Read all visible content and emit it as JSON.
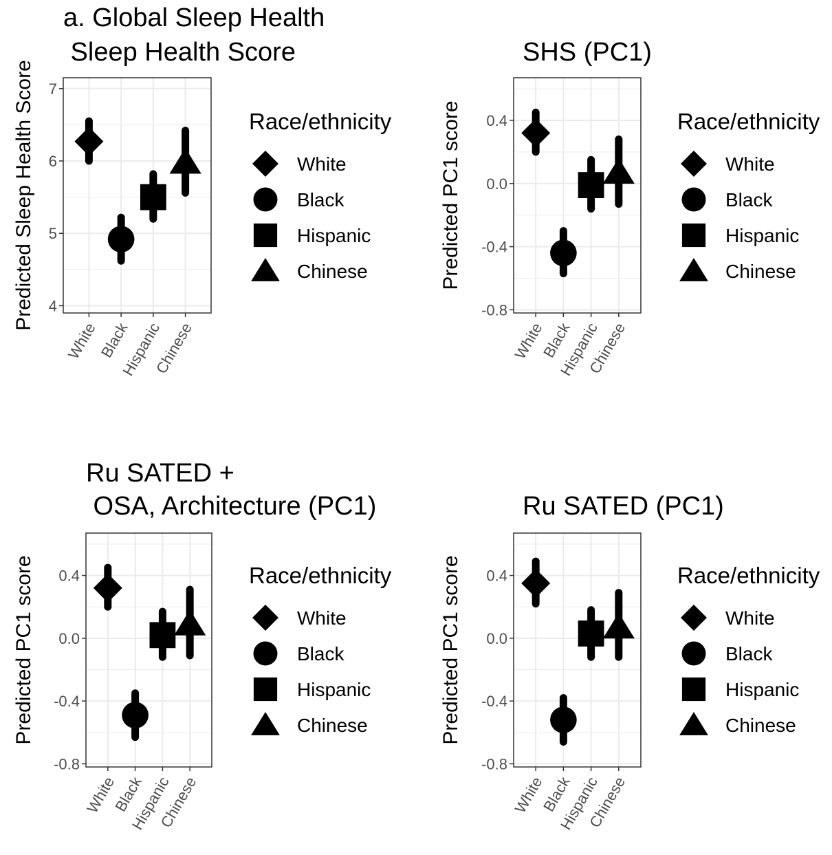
{
  "chart_data": [
    {
      "type": "scatter",
      "title_lines": [
        "a. Global Sleep Health",
        " Sleep Health Score"
      ],
      "ylabel": "Predicted Sleep Health Score",
      "categories": [
        "White",
        "Black",
        "Hispanic",
        "Chinese"
      ],
      "ylim": [
        3.9,
        7.15
      ],
      "yticks": [
        4,
        5,
        6,
        7
      ],
      "ytick_labels": [
        "4",
        "5",
        "6",
        "7"
      ],
      "estimate": [
        6.27,
        4.92,
        5.5,
        5.98
      ],
      "lower": [
        6.0,
        4.62,
        5.2,
        5.56
      ],
      "upper": [
        6.55,
        5.22,
        5.82,
        6.42
      ],
      "grid": true,
      "legend": {
        "title": "Race/ethnicity",
        "position": "right",
        "items": [
          "White",
          "Black",
          "Hispanic",
          "Chinese"
        ]
      }
    },
    {
      "type": "scatter",
      "title_lines": [
        "SHS (PC1)"
      ],
      "ylabel": "Predicted PC1 score",
      "categories": [
        "White",
        "Black",
        "Hispanic",
        "Chinese"
      ],
      "ylim": [
        -0.82,
        0.67
      ],
      "yticks": [
        -0.8,
        -0.4,
        0.0,
        0.4
      ],
      "ytick_labels": [
        "-0.8",
        "-0.4",
        "0.0",
        "0.4"
      ],
      "estimate": [
        0.32,
        -0.44,
        -0.01,
        0.07
      ],
      "lower": [
        0.2,
        -0.57,
        -0.16,
        -0.13
      ],
      "upper": [
        0.45,
        -0.3,
        0.15,
        0.28
      ],
      "grid": true,
      "legend": {
        "title": "Race/ethnicity",
        "position": "right",
        "items": [
          "White",
          "Black",
          "Hispanic",
          "Chinese"
        ]
      }
    },
    {
      "type": "scatter",
      "title_lines": [
        "Ru SATED +",
        " OSA, Architecture (PC1)"
      ],
      "ylabel": "Predicted PC1 score",
      "categories": [
        "White",
        "Black",
        "Hispanic",
        "Chinese"
      ],
      "ylim": [
        -0.82,
        0.67
      ],
      "yticks": [
        -0.8,
        -0.4,
        0.0,
        0.4
      ],
      "ytick_labels": [
        "-0.8",
        "-0.4",
        "0.0",
        "0.4"
      ],
      "estimate": [
        0.32,
        -0.49,
        0.02,
        0.09
      ],
      "lower": [
        0.2,
        -0.63,
        -0.12,
        -0.11
      ],
      "upper": [
        0.45,
        -0.35,
        0.17,
        0.31
      ],
      "grid": true,
      "legend": {
        "title": "Race/ethnicity",
        "position": "right",
        "items": [
          "White",
          "Black",
          "Hispanic",
          "Chinese"
        ]
      }
    },
    {
      "type": "scatter",
      "title_lines": [
        "Ru SATED (PC1)"
      ],
      "ylabel": "Predicted PC1 score",
      "categories": [
        "White",
        "Black",
        "Hispanic",
        "Chinese"
      ],
      "ylim": [
        -0.82,
        0.67
      ],
      "yticks": [
        -0.8,
        -0.4,
        0.0,
        0.4
      ],
      "ytick_labels": [
        "-0.8",
        "-0.4",
        "0.0",
        "0.4"
      ],
      "estimate": [
        0.35,
        -0.52,
        0.03,
        0.07
      ],
      "lower": [
        0.22,
        -0.66,
        -0.12,
        -0.12
      ],
      "upper": [
        0.49,
        -0.38,
        0.18,
        0.29
      ],
      "grid": true,
      "legend": {
        "title": "Race/ethnicity",
        "position": "right",
        "items": [
          "White",
          "Black",
          "Hispanic",
          "Chinese"
        ]
      }
    }
  ],
  "colors": {
    "marker": "#000000",
    "grid": "#ebebeb",
    "tick_text": "#4d4d4d",
    "panel_border": "#333333"
  },
  "shapes": [
    "diamond",
    "circle",
    "square",
    "triangle"
  ]
}
